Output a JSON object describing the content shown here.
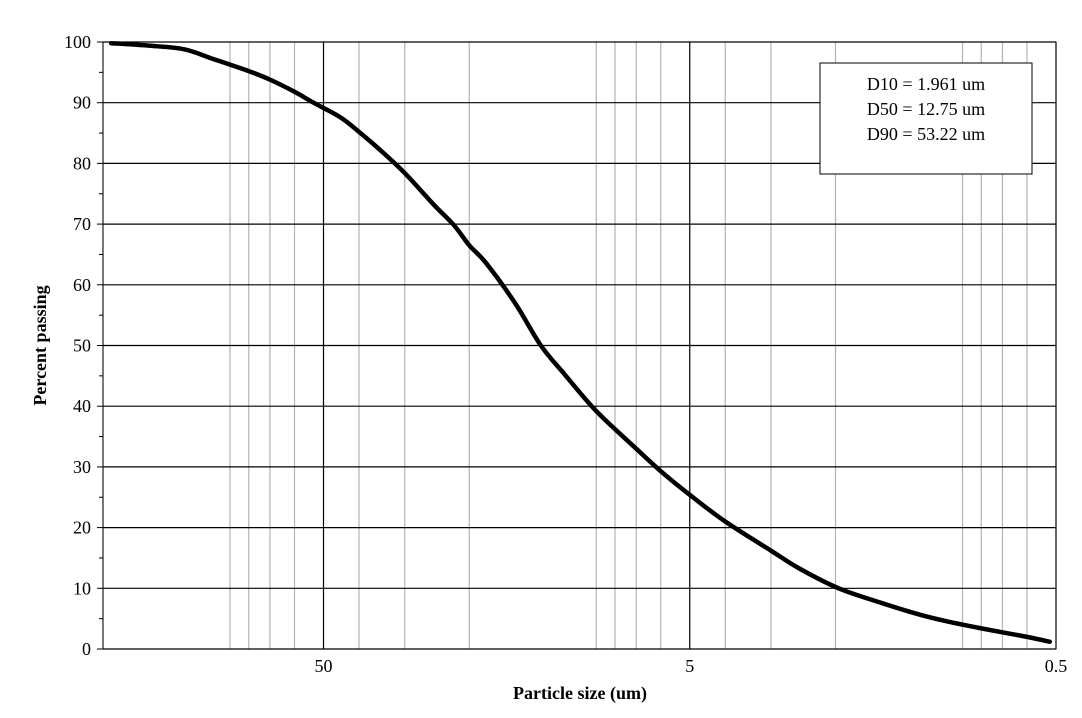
{
  "chart_data": {
    "type": "line",
    "title": "",
    "xlabel": "Particle size (um)",
    "ylabel": "Percent passing",
    "x_scale": "log",
    "x_reversed": true,
    "xlim": [
      0.5,
      200
    ],
    "ylim": [
      0,
      100
    ],
    "x_major_ticks": [
      50,
      5,
      0.5
    ],
    "x_tick_labels": [
      "50",
      "5",
      "0.5"
    ],
    "y_ticks": [
      0,
      10,
      20,
      30,
      40,
      50,
      60,
      70,
      80,
      90,
      100
    ],
    "y_tick_labels": [
      "0",
      "10",
      "20",
      "30",
      "40",
      "50",
      "60",
      "70",
      "80",
      "90",
      "100"
    ],
    "grid": true,
    "legend": "none",
    "line_color": "#000000",
    "annotations": [
      "D10 = 1.961 um",
      "D50 = 12.75 um",
      "D90 = 53.22 um"
    ],
    "annotation_placement": "top-right",
    "series": [
      {
        "x": [
          190,
          150,
          120,
          100,
          80,
          70,
          60,
          53.22,
          45,
          40,
          35,
          30,
          25,
          22,
          20,
          18,
          15,
          12.75,
          11,
          9,
          7,
          6,
          5,
          4,
          3,
          2.5,
          1.961,
          1.5,
          1.2,
          1,
          0.8,
          0.6,
          0.52
        ],
        "y": [
          99.8,
          99.4,
          98.8,
          97.2,
          95.2,
          93.8,
          91.8,
          90,
          87.6,
          85.2,
          82.2,
          78.4,
          73.2,
          69.8,
          66.5,
          63.6,
          57,
          50,
          45.3,
          39.2,
          33,
          29.3,
          25.4,
          21,
          16.2,
          13.2,
          10,
          7.6,
          5.8,
          4.6,
          3.4,
          2,
          1.2
        ]
      }
    ]
  }
}
